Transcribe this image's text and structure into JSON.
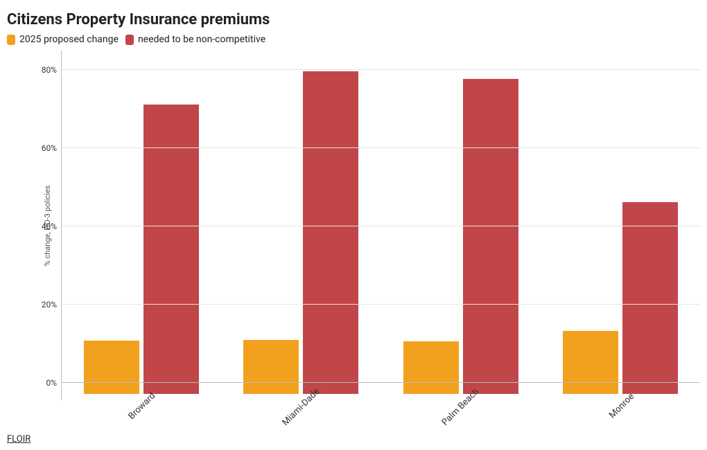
{
  "title": "Citizens Property Insurance premiums",
  "legend": {
    "series1": {
      "label": "2025 proposed change",
      "color": "#f2a11e"
    },
    "series2": {
      "label": "needed to be non-competitive",
      "color": "#c1464a"
    }
  },
  "chart": {
    "type": "bar",
    "y_axis_label": "% change, HO-3 policies",
    "y_min": 0,
    "y_max": 85,
    "y_ticks": [
      0,
      20,
      40,
      60,
      80
    ],
    "y_tick_suffix": "%",
    "baseline_percent": 5,
    "grid_color": "#e5e5e5",
    "axis_color": "#bbbbbb",
    "background_color": "#ffffff",
    "label_fontsize": 11,
    "tick_fontsize": 12,
    "categories": [
      "Broward",
      "Miami-Dade",
      "Palm Beach",
      "Monroe"
    ],
    "series": [
      {
        "name": "2025 proposed change",
        "color": "#f2a11e",
        "values": [
          13.5,
          13.7,
          13.4,
          16.0
        ]
      },
      {
        "name": "needed to be non-competitive",
        "color": "#c1464a",
        "values": [
          74.0,
          82.5,
          80.5,
          49.0
        ]
      }
    ]
  },
  "source": {
    "label": "FLOIR"
  }
}
